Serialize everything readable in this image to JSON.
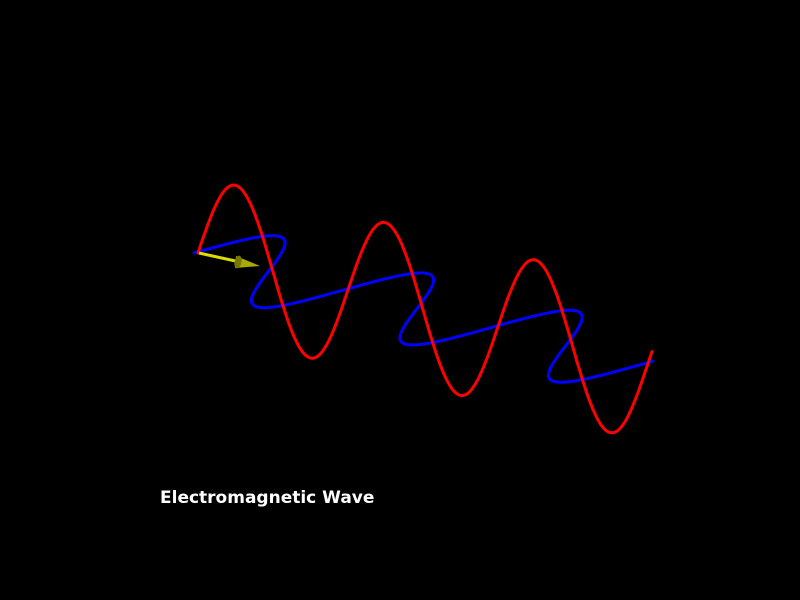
{
  "scene": {
    "background": "#000000",
    "caption": "Electromagnetic Wave",
    "electric_wave_color": "#ff0000",
    "magnetic_wave_color": "#0000ff",
    "arrow_color": "#dddd00",
    "arrow_icon": "propagation-direction-arrow"
  }
}
